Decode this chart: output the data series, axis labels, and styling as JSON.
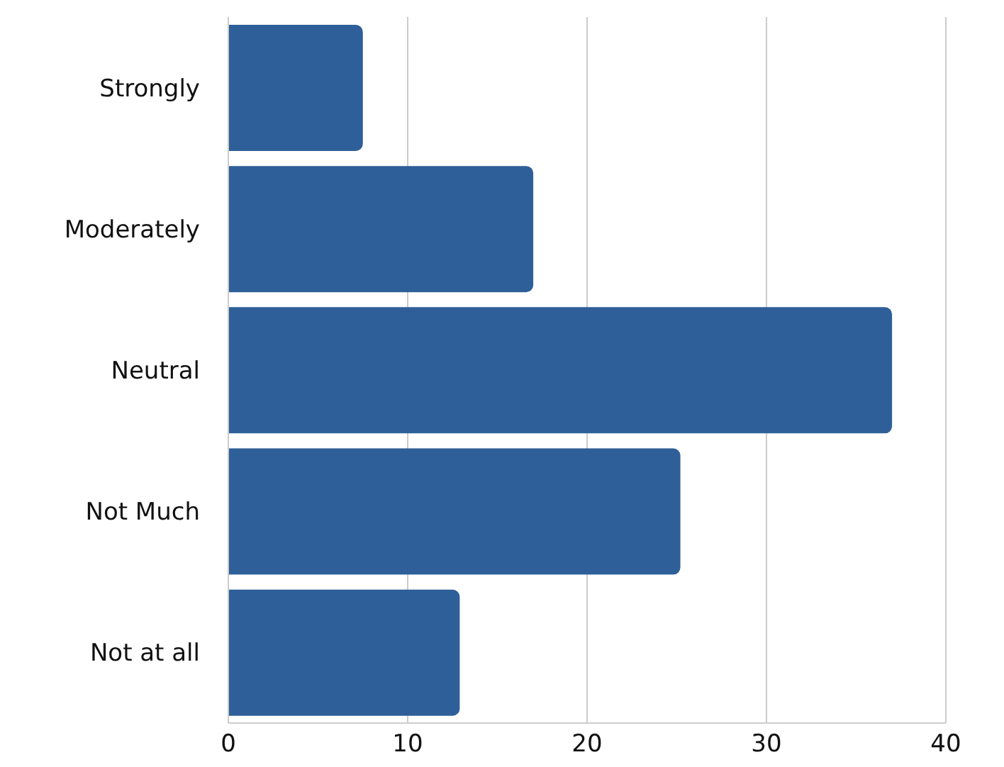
{
  "chart_data": {
    "type": "bar",
    "orientation": "horizontal",
    "categories": [
      "Strongly",
      "Moderately",
      "Neutral",
      "Not Much",
      "Not at all"
    ],
    "values": [
      7.5,
      17,
      37,
      25.2,
      12.9
    ],
    "color": "#2e5f98",
    "xlim": [
      0,
      40
    ],
    "xticks": [
      0,
      10,
      20,
      30,
      40
    ],
    "grid": "x"
  }
}
